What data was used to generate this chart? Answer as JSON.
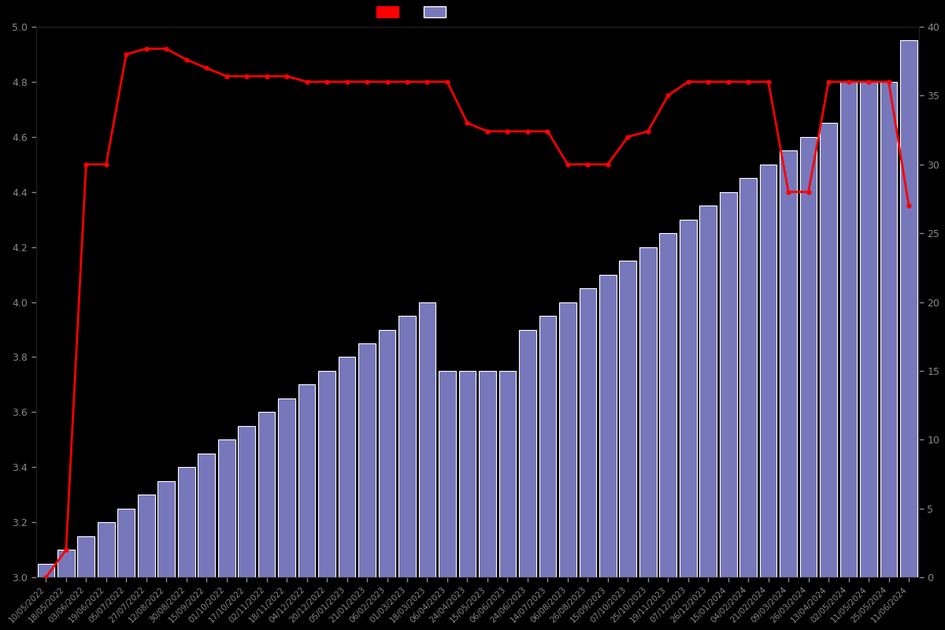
{
  "dates": [
    "10/05/2022",
    "18/05/2022",
    "03/06/2022",
    "19/06/2022",
    "05/07/2022",
    "27/07/2022",
    "12/08/2022",
    "30/08/2022",
    "15/09/2022",
    "01/10/2022",
    "17/10/2022",
    "02/11/2022",
    "18/11/2022",
    "04/12/2022",
    "20/12/2022",
    "05/01/2023",
    "21/01/2023",
    "06/02/2023",
    "01/03/2023",
    "18/03/2023",
    "06/04/2023",
    "24/04/2023",
    "15/05/2023",
    "06/06/2023",
    "24/06/2023",
    "14/07/2023",
    "06/08/2023",
    "26/08/2023",
    "15/09/2023",
    "07/10/2023",
    "25/10/2023",
    "19/11/2023",
    "07/12/2023",
    "26/12/2023",
    "15/01/2024",
    "04/02/2024",
    "21/02/2024",
    "09/03/2024",
    "26/03/2024",
    "13/04/2024",
    "02/05/2024",
    "11/05/2024",
    "25/05/2024",
    "11/06/2024"
  ],
  "bar_values": [
    1,
    2,
    3,
    4,
    5,
    6,
    7,
    8,
    9,
    10,
    11,
    12,
    13,
    14,
    15,
    16,
    17,
    18,
    19,
    20,
    15,
    15,
    15,
    15,
    18,
    19,
    20,
    21,
    22,
    23,
    24,
    25,
    26,
    27,
    28,
    29,
    30,
    31,
    32,
    33,
    36,
    36,
    36,
    39
  ],
  "rating_values": [
    3.0,
    3.1,
    4.5,
    4.5,
    4.9,
    4.92,
    4.92,
    4.88,
    4.85,
    4.82,
    4.82,
    4.82,
    4.82,
    4.8,
    4.8,
    4.8,
    4.8,
    4.8,
    4.8,
    4.8,
    4.8,
    4.65,
    4.62,
    4.62,
    4.62,
    4.62,
    4.5,
    4.5,
    4.5,
    4.6,
    4.62,
    4.75,
    4.8,
    4.8,
    4.8,
    4.8,
    4.8,
    4.4,
    4.4,
    4.8,
    4.8,
    4.8,
    4.8,
    4.35
  ],
  "bar_color": "#7777bb",
  "bar_edge_color": "#ffffff",
  "line_color": "#ff0000",
  "background_color": "#000000",
  "text_color": "#888888",
  "ylim_left": [
    3.0,
    5.0
  ],
  "ylim_right": [
    0,
    40
  ],
  "yticks_left": [
    3.0,
    3.2,
    3.4,
    3.6,
    3.8,
    4.0,
    4.2,
    4.4,
    4.6,
    4.8,
    5.0
  ],
  "yticks_right": [
    0,
    5,
    10,
    15,
    20,
    25,
    30,
    35,
    40
  ],
  "figsize": [
    12.0,
    8.0
  ],
  "dpi": 100
}
